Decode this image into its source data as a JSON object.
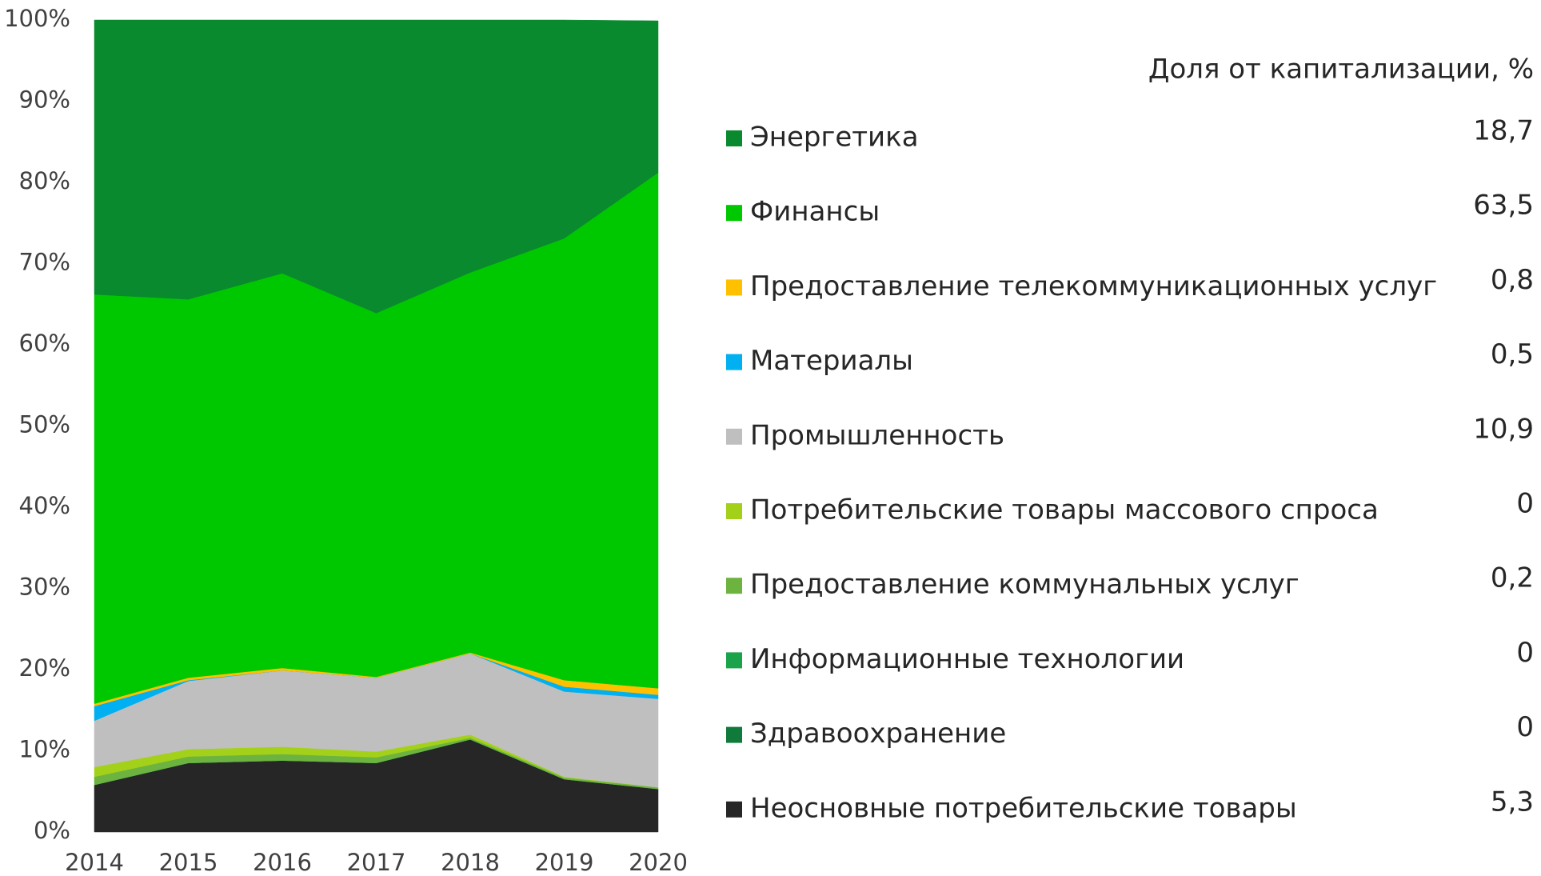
{
  "chart_data": {
    "type": "stacked_area",
    "legend_title": "Доля от капитализации, %",
    "categories": [
      "2014",
      "2015",
      "2016",
      "2017",
      "2018",
      "2019",
      "2020"
    ],
    "ylim": [
      0,
      100
    ],
    "yticks": [
      {
        "value": 0,
        "label": "0%"
      },
      {
        "value": 10,
        "label": "10%"
      },
      {
        "value": 20,
        "label": "20%"
      },
      {
        "value": 30,
        "label": "30%"
      },
      {
        "value": 40,
        "label": "40%"
      },
      {
        "value": 50,
        "label": "50%"
      },
      {
        "value": 60,
        "label": "60%"
      },
      {
        "value": 70,
        "label": "70%"
      },
      {
        "value": 80,
        "label": "80%"
      },
      {
        "value": 90,
        "label": "90%"
      },
      {
        "value": 100,
        "label": "100%"
      }
    ],
    "legend": "right",
    "series": [
      {
        "name": "Энергетика",
        "color": "#0a8a2e",
        "values": [
          33.8,
          34.4,
          31.2,
          36.1,
          31.1,
          26.9,
          18.7
        ],
        "value_labels": [
          null,
          null,
          null,
          null,
          null,
          null,
          "18,7"
        ]
      },
      {
        "name": "Финансы",
        "color": "#00c800",
        "values": [
          50.4,
          46.6,
          48.6,
          44.8,
          46.8,
          54.4,
          63.5
        ],
        "value_labels": [
          null,
          null,
          null,
          null,
          null,
          null,
          "63,5"
        ]
      },
      {
        "name": "Предоставление телекоммуникационных услуг",
        "color": "#ffc000",
        "values": [
          0.3,
          0.3,
          0.3,
          0.1,
          0.1,
          0.8,
          0.8
        ],
        "value_labels": [
          null,
          null,
          null,
          null,
          null,
          null,
          "0,8"
        ]
      },
      {
        "name": "Материалы",
        "color": "#00b0f0",
        "values": [
          1.8,
          0.1,
          0,
          0,
          0,
          0.6,
          0.5
        ],
        "value_labels": [
          null,
          null,
          null,
          null,
          null,
          null,
          "0,5"
        ]
      },
      {
        "name": "Промышленность",
        "color": "#bfbfbf",
        "values": [
          5.7,
          8.4,
          9.4,
          9.1,
          10.0,
          10.5,
          10.9
        ],
        "value_labels": [
          null,
          null,
          null,
          null,
          null,
          null,
          "10,9"
        ]
      },
      {
        "name": "Потребительские товары массового спроса",
        "color": "#a3d119",
        "values": [
          1.2,
          0.9,
          0.9,
          0.7,
          0.4,
          0.1,
          0
        ],
        "value_labels": [
          null,
          null,
          null,
          null,
          null,
          null,
          "0"
        ]
      },
      {
        "name": "Предоставление коммунальных услуг",
        "color": "#6db33f",
        "values": [
          1.0,
          0.8,
          0.8,
          0.7,
          0.2,
          0.2,
          0.2
        ],
        "value_labels": [
          null,
          null,
          null,
          null,
          null,
          null,
          "0,2"
        ]
      },
      {
        "name": "Информационные технологии",
        "color": "#1aa34a",
        "values": [
          0,
          0,
          0,
          0,
          0,
          0,
          0
        ],
        "value_labels": [
          null,
          null,
          null,
          null,
          null,
          null,
          "0"
        ]
      },
      {
        "name": "Здравоохранение",
        "color": "#0f7a3a",
        "values": [
          0,
          0,
          0,
          0,
          0,
          0,
          0
        ],
        "value_labels": [
          null,
          null,
          null,
          null,
          null,
          null,
          "0"
        ]
      },
      {
        "name": "Неосновные потребительские товары",
        "color": "#262626",
        "values": [
          5.8,
          8.5,
          8.8,
          8.5,
          11.4,
          6.5,
          5.3
        ],
        "value_labels": [
          null,
          null,
          null,
          null,
          null,
          null,
          "5,3"
        ]
      }
    ]
  }
}
